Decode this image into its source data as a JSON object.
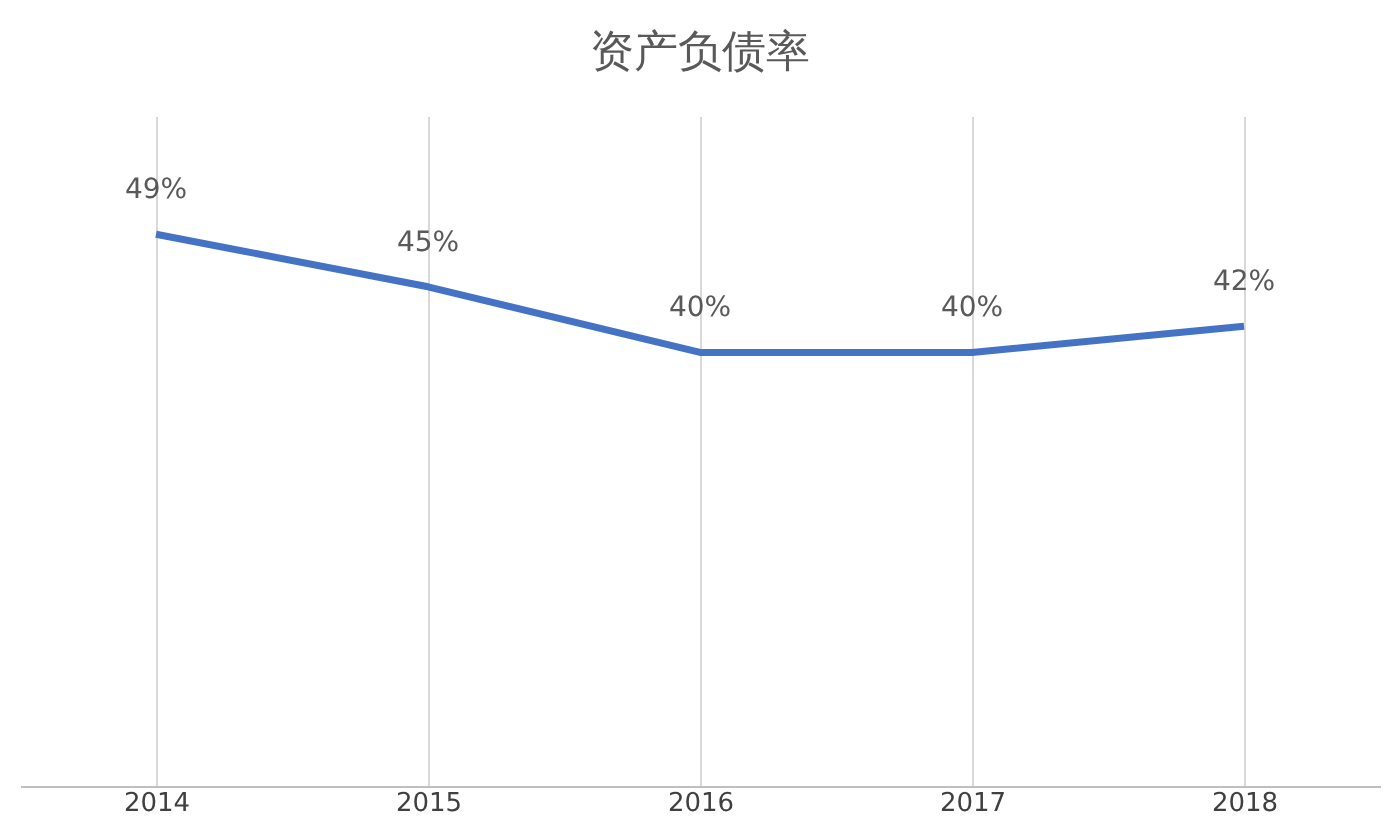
{
  "chart_data": {
    "type": "line",
    "title": "资产负债率",
    "categories": [
      "2014",
      "2015",
      "2016",
      "2017",
      "2018"
    ],
    "series": [
      {
        "color": "#4472c4",
        "values": [
          49,
          45,
          40,
          40,
          42
        ],
        "value_labels": [
          "49%",
          "45%",
          "40%",
          "40%",
          "42%"
        ]
      }
    ],
    "ylim": [
      7,
      58
    ],
    "tick_labels": "x",
    "grid": "x",
    "marker": "none",
    "line_style": "solid"
  }
}
